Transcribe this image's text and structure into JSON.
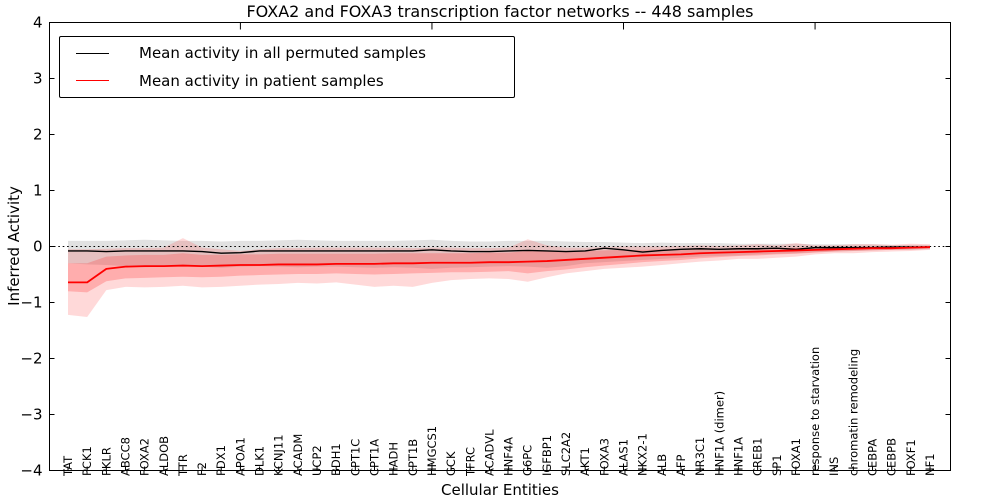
{
  "title": "FOXA2 and FOXA3 transcription factor networks -- 448 samples",
  "axes": {
    "ylabel": "Inferred Activity",
    "xlabel": "Cellular Entities",
    "ytick_labels": [
      "4",
      "3",
      "2",
      "1",
      "0",
      "−1",
      "−2",
      "−3",
      "−4"
    ],
    "ytick_values": [
      4,
      3,
      2,
      1,
      0,
      -1,
      -2,
      -3,
      -4
    ]
  },
  "legend": {
    "entries": [
      {
        "label": "Mean activity in all permuted samples",
        "color": "#000000"
      },
      {
        "label": "Mean activity in patient samples",
        "color": "#ff0000"
      }
    ]
  },
  "colors": {
    "permuted_line": "#000000",
    "patient_line": "#ff0000",
    "permuted_band": "#777777",
    "patient_band": "#ff2a2a",
    "zero_line": "#000000",
    "axis": "#000000"
  },
  "chart_data": {
    "type": "line",
    "title": "FOXA2 and FOXA3 transcription factor networks -- 448 samples",
    "xlabel": "Cellular Entities",
    "ylabel": "Inferred Activity",
    "ylim": [
      -4,
      4
    ],
    "grid": false,
    "legend_position": "upper left",
    "zero_reference_line": 0,
    "categories": [
      "TAT",
      "PCK1",
      "PKLR",
      "ABCC8",
      "FOXA2",
      "ALDOB",
      "TTR",
      "F2",
      "PDX1",
      "APOA1",
      "DLK1",
      "KCNJ11",
      "ACADM",
      "UCP2",
      "BDH1",
      "CPT1C",
      "CPT1A",
      "HADH",
      "CPT1B",
      "HMGCS1",
      "GCK",
      "TFRC",
      "ACADVL",
      "HNF4A",
      "G6PC",
      "IGFBP1",
      "SLC2A2",
      "AKT1",
      "FOXA3",
      "ALAS1",
      "NKX2-1",
      "ALB",
      "AFP",
      "NR3C1",
      "HNF1A (dimer)",
      "HNF1A",
      "CREB1",
      "SP1",
      "FOXA1",
      "response to starvation",
      "INS",
      "chromatin remodeling",
      "CEBPA",
      "CEBPB",
      "FOXF1",
      "NF1"
    ],
    "major_tick_indices": [
      9,
      19,
      29,
      39
    ],
    "series": [
      {
        "name": "Mean activity in all permuted samples",
        "values": [
          -0.08,
          -0.08,
          -0.09,
          -0.08,
          -0.08,
          -0.08,
          -0.08,
          -0.09,
          -0.12,
          -0.11,
          -0.08,
          -0.08,
          -0.08,
          -0.08,
          -0.08,
          -0.08,
          -0.08,
          -0.08,
          -0.08,
          -0.06,
          -0.08,
          -0.09,
          -0.09,
          -0.08,
          -0.07,
          -0.08,
          -0.09,
          -0.08,
          -0.03,
          -0.06,
          -0.1,
          -0.07,
          -0.05,
          -0.04,
          -0.05,
          -0.04,
          -0.04,
          -0.03,
          -0.05,
          -0.02,
          -0.02,
          -0.02,
          -0.02,
          -0.01,
          -0.01,
          -0.01
        ],
        "band_upper": [
          0.1,
          0.1,
          0.1,
          0.11,
          0.12,
          0.11,
          0.1,
          0.1,
          0.09,
          0.1,
          0.1,
          0.11,
          0.12,
          0.11,
          0.1,
          0.1,
          0.1,
          0.1,
          0.11,
          0.12,
          0.1,
          0.09,
          0.09,
          0.1,
          0.1,
          0.1,
          0.09,
          0.08,
          0.08,
          0.07,
          0.06,
          0.07,
          0.06,
          0.06,
          0.06,
          0.05,
          0.05,
          0.05,
          0.05,
          0.04,
          0.04,
          0.04,
          0.04,
          0.03,
          0.03,
          0.03
        ],
        "band_lower": [
          -0.3,
          -0.32,
          -0.33,
          -0.35,
          -0.37,
          -0.36,
          -0.35,
          -0.36,
          -0.38,
          -0.36,
          -0.35,
          -0.36,
          -0.37,
          -0.36,
          -0.36,
          -0.37,
          -0.38,
          -0.37,
          -0.38,
          -0.4,
          -0.38,
          -0.37,
          -0.36,
          -0.35,
          -0.36,
          -0.38,
          -0.35,
          -0.3,
          -0.28,
          -0.26,
          -0.24,
          -0.22,
          -0.2,
          -0.18,
          -0.17,
          -0.16,
          -0.14,
          -0.13,
          -0.12,
          -0.1,
          -0.09,
          -0.08,
          -0.07,
          -0.06,
          -0.06,
          -0.05
        ]
      },
      {
        "name": "Mean activity in patient samples",
        "values": [
          -0.64,
          -0.64,
          -0.4,
          -0.36,
          -0.35,
          -0.35,
          -0.34,
          -0.35,
          -0.34,
          -0.33,
          -0.33,
          -0.32,
          -0.32,
          -0.32,
          -0.31,
          -0.31,
          -0.31,
          -0.3,
          -0.3,
          -0.29,
          -0.29,
          -0.29,
          -0.28,
          -0.28,
          -0.27,
          -0.26,
          -0.24,
          -0.22,
          -0.2,
          -0.18,
          -0.16,
          -0.15,
          -0.14,
          -0.12,
          -0.11,
          -0.1,
          -0.09,
          -0.08,
          -0.07,
          -0.06,
          -0.05,
          -0.04,
          -0.03,
          -0.03,
          -0.02,
          -0.01
        ],
        "band_inner_upper": [
          -0.3,
          -0.3,
          -0.18,
          -0.16,
          -0.15,
          -0.15,
          -0.12,
          -0.15,
          -0.15,
          -0.14,
          -0.14,
          -0.13,
          -0.13,
          -0.13,
          -0.13,
          -0.13,
          -0.13,
          -0.12,
          -0.12,
          -0.12,
          -0.12,
          -0.12,
          -0.11,
          -0.11,
          -0.08,
          -0.09,
          -0.08,
          -0.08,
          -0.07,
          -0.06,
          -0.06,
          -0.05,
          -0.05,
          -0.04,
          -0.04,
          -0.03,
          -0.03,
          -0.03,
          -0.02,
          -0.02,
          -0.02,
          -0.01,
          -0.01,
          -0.01,
          0.0,
          0.0
        ],
        "band_inner_lower": [
          -0.8,
          -0.82,
          -0.62,
          -0.57,
          -0.56,
          -0.55,
          -0.54,
          -0.55,
          -0.54,
          -0.52,
          -0.51,
          -0.5,
          -0.49,
          -0.49,
          -0.48,
          -0.49,
          -0.5,
          -0.49,
          -0.48,
          -0.47,
          -0.46,
          -0.46,
          -0.45,
          -0.44,
          -0.48,
          -0.44,
          -0.41,
          -0.37,
          -0.34,
          -0.31,
          -0.28,
          -0.26,
          -0.24,
          -0.21,
          -0.19,
          -0.17,
          -0.16,
          -0.14,
          -0.13,
          -0.11,
          -0.09,
          -0.08,
          -0.07,
          -0.06,
          -0.05,
          -0.04
        ],
        "band_outer_upper": [
          -0.05,
          -0.05,
          -0.04,
          -0.03,
          -0.03,
          -0.02,
          0.15,
          -0.02,
          -0.05,
          -0.08,
          -0.05,
          -0.03,
          -0.03,
          -0.02,
          -0.02,
          -0.02,
          -0.02,
          -0.02,
          -0.03,
          -0.02,
          -0.02,
          -0.03,
          -0.03,
          -0.02,
          0.13,
          0.02,
          -0.02,
          -0.02,
          -0.01,
          0.0,
          0.0,
          0.0,
          0.01,
          0.02,
          0.01,
          0.02,
          0.04,
          0.02,
          0.06,
          0.02,
          0.02,
          0.04,
          0.04,
          0.03,
          0.05,
          0.04
        ],
        "band_outer_lower": [
          -1.22,
          -1.26,
          -0.78,
          -0.72,
          -0.73,
          -0.72,
          -0.7,
          -0.73,
          -0.72,
          -0.7,
          -0.68,
          -0.67,
          -0.65,
          -0.66,
          -0.64,
          -0.68,
          -0.72,
          -0.7,
          -0.72,
          -0.65,
          -0.6,
          -0.58,
          -0.57,
          -0.58,
          -0.63,
          -0.55,
          -0.48,
          -0.44,
          -0.4,
          -0.38,
          -0.36,
          -0.33,
          -0.3,
          -0.27,
          -0.25,
          -0.22,
          -0.22,
          -0.2,
          -0.18,
          -0.14,
          -0.12,
          -0.12,
          -0.1,
          -0.09,
          -0.08,
          -0.06
        ]
      }
    ]
  }
}
